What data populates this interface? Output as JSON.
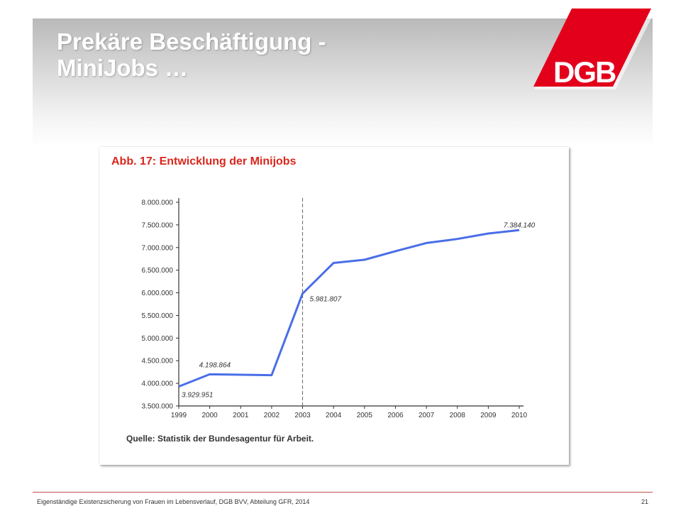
{
  "slide": {
    "title_line1": "Prekäre Beschäftigung -",
    "title_line2": "MiniJobs …",
    "logo_text": "DGB",
    "footer_text": "Eigenständige Existenzsicherung von Frauen im Lebensverlauf, DGB BVV, Abteilung GFR, 2014",
    "page_number": "21"
  },
  "colors": {
    "brand_red": "#e3001b",
    "line_blue": "#4a6ee8",
    "title_red": "#d9261c"
  },
  "chart_data": {
    "type": "line",
    "title": "Abb. 17: Entwicklung der Minijobs",
    "source": "Quelle: Statistik der Bundesagentur für Arbeit.",
    "x": [
      "1999",
      "2000",
      "2001",
      "2002",
      "2003",
      "2004",
      "2005",
      "2006",
      "2007",
      "2008",
      "2009",
      "2010"
    ],
    "series": [
      {
        "values": [
          3929951,
          4198864,
          4190000,
          4180000,
          5981807,
          6660000,
          6730000,
          6920000,
          7100000,
          7190000,
          7310000,
          7384140
        ]
      }
    ],
    "ylim": [
      3500000,
      8000000
    ],
    "yticks": [
      "3.500.000",
      "4.000.000",
      "4.500.000",
      "5.000.000",
      "5.500.000",
      "6.000.000",
      "6.500.000",
      "7.000.000",
      "7.500.000",
      "8.000.000"
    ],
    "annotations": [
      {
        "x": "1999",
        "text": "3.929.951"
      },
      {
        "x": "2000",
        "text": "4.198.864"
      },
      {
        "x": "2003",
        "text": "5.981.807"
      },
      {
        "x": "2010",
        "text": "7.384.140"
      }
    ],
    "reference_line_x": "2003",
    "grid": false
  }
}
